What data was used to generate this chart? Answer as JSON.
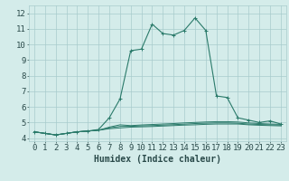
{
  "title": "",
  "xlabel": "Humidex (Indice chaleur)",
  "background_color": "#d4ecea",
  "line_color": "#2a7a6a",
  "xlim": [
    -0.5,
    23.5
  ],
  "ylim": [
    3.8,
    12.5
  ],
  "yticks": [
    4,
    5,
    6,
    7,
    8,
    9,
    10,
    11,
    12
  ],
  "xticks": [
    0,
    1,
    2,
    3,
    4,
    5,
    6,
    7,
    8,
    9,
    10,
    11,
    12,
    13,
    14,
    15,
    16,
    17,
    18,
    19,
    20,
    21,
    22,
    23
  ],
  "main_line": {
    "x": [
      0,
      1,
      2,
      3,
      4,
      5,
      6,
      7,
      8,
      9,
      10,
      11,
      12,
      13,
      14,
      15,
      16,
      17,
      18,
      19,
      20,
      21,
      22,
      23
    ],
    "y": [
      4.4,
      4.3,
      4.2,
      4.3,
      4.4,
      4.45,
      4.55,
      5.3,
      6.5,
      9.6,
      9.7,
      11.3,
      10.7,
      10.6,
      10.9,
      11.7,
      10.9,
      6.7,
      6.6,
      5.3,
      5.15,
      5.0,
      5.1,
      4.9
    ]
  },
  "flat_line1": {
    "x": [
      0,
      1,
      2,
      3,
      4,
      5,
      6,
      7,
      8,
      9,
      10,
      11,
      12,
      13,
      14,
      15,
      16,
      17,
      18,
      19,
      20,
      21,
      22,
      23
    ],
    "y": [
      4.4,
      4.3,
      4.2,
      4.3,
      4.4,
      4.45,
      4.5,
      4.6,
      4.65,
      4.7,
      4.72,
      4.74,
      4.77,
      4.8,
      4.83,
      4.85,
      4.88,
      4.9,
      4.9,
      4.9,
      4.85,
      4.82,
      4.8,
      4.78
    ]
  },
  "flat_line2": {
    "x": [
      0,
      1,
      2,
      3,
      4,
      5,
      6,
      7,
      8,
      9,
      10,
      11,
      12,
      13,
      14,
      15,
      16,
      17,
      18,
      19,
      20,
      21,
      22,
      23
    ],
    "y": [
      4.4,
      4.3,
      4.2,
      4.3,
      4.4,
      4.45,
      4.5,
      4.65,
      4.75,
      4.75,
      4.78,
      4.8,
      4.83,
      4.86,
      4.89,
      4.93,
      4.95,
      4.97,
      4.97,
      4.95,
      4.9,
      4.87,
      4.85,
      4.83
    ]
  },
  "flat_line3": {
    "x": [
      0,
      1,
      2,
      3,
      4,
      5,
      6,
      7,
      8,
      9,
      10,
      11,
      12,
      13,
      14,
      15,
      16,
      17,
      18,
      19,
      20,
      21,
      22,
      23
    ],
    "y": [
      4.4,
      4.3,
      4.2,
      4.3,
      4.4,
      4.45,
      4.5,
      4.7,
      4.85,
      4.8,
      4.84,
      4.87,
      4.9,
      4.93,
      4.97,
      5.0,
      5.03,
      5.05,
      5.05,
      5.03,
      4.97,
      4.93,
      4.9,
      4.88
    ]
  },
  "grid_color": "#a8cccc",
  "font_color": "#2a4a4a",
  "font_size": 6.5,
  "xlabel_fontsize": 7
}
